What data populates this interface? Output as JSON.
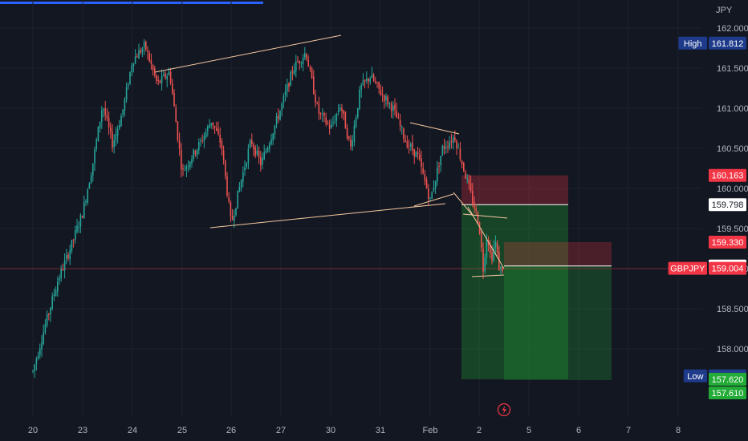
{
  "chart_data": {
    "type": "candlestick",
    "symbol": "GBPJPY",
    "currency": "JPY",
    "y_axis": {
      "range": [
        157.55,
        162.2
      ],
      "ticks": [
        "162.000",
        "161.500",
        "161.000",
        "160.500",
        "160.000",
        "159.500",
        "159.000",
        "158.500",
        "158.000"
      ]
    },
    "x_axis": {
      "ticks": [
        "20",
        "23",
        "24",
        "25",
        "26",
        "27",
        "30",
        "31",
        "Feb",
        "2",
        "5",
        "6",
        "7",
        "8"
      ]
    },
    "price_tags": [
      {
        "label": "High",
        "value": "161.812",
        "color": "#1e3a8a"
      },
      {
        "label": "",
        "value": "160.163",
        "color": "#f23645"
      },
      {
        "label": "",
        "value": "159.798",
        "color": "#ffffff"
      },
      {
        "label": "",
        "value": "159.330",
        "color": "#f23645"
      },
      {
        "label": "",
        "value": "159.033",
        "color": "#ffffff"
      },
      {
        "label": "GBPJPY",
        "value": "159.004",
        "color": "#f23645"
      },
      {
        "label": "Low",
        "value": "157.662",
        "color": "#1e3a8a"
      },
      {
        "label": "",
        "value": "157.620",
        "color": "#22ab36"
      },
      {
        "label": "",
        "value": "157.610",
        "color": "#22ab36"
      }
    ],
    "current_price": 159.004,
    "day_high": 161.812,
    "day_low": 157.662,
    "positions": [
      {
        "type": "short",
        "entry": 159.798,
        "stop": 160.163,
        "target": 157.62
      },
      {
        "type": "short",
        "entry": 159.033,
        "stop": 159.33,
        "target": 157.61
      }
    ],
    "price_path": [
      [
        "20",
        157.72
      ],
      [
        "20",
        158.3
      ],
      [
        "20",
        158.85
      ],
      [
        "20",
        159.25
      ],
      [
        "23",
        159.7
      ],
      [
        "23",
        160.3
      ],
      [
        "23",
        161.05
      ],
      [
        "23",
        160.55
      ],
      [
        "23",
        160.95
      ],
      [
        "24",
        161.6
      ],
      [
        "24",
        161.78
      ],
      [
        "24",
        161.3
      ],
      [
        "24",
        161.45
      ],
      [
        "25",
        160.2
      ],
      [
        "25",
        160.4
      ],
      [
        "25",
        160.6
      ],
      [
        "25",
        160.85
      ],
      [
        "25",
        160.55
      ],
      [
        "26",
        159.55
      ],
      [
        "26",
        160.1
      ],
      [
        "26",
        160.6
      ],
      [
        "26",
        160.3
      ],
      [
        "26",
        160.65
      ],
      [
        "27",
        161.0
      ],
      [
        "27",
        161.5
      ],
      [
        "27",
        161.7
      ],
      [
        "27",
        160.95
      ],
      [
        "30",
        160.75
      ],
      [
        "30",
        161.05
      ],
      [
        "30",
        160.5
      ],
      [
        "30",
        161.25
      ],
      [
        "30",
        161.4
      ],
      [
        "31",
        161.2
      ],
      [
        "31",
        161.0
      ],
      [
        "31",
        160.6
      ],
      [
        "31",
        160.4
      ],
      [
        "Feb",
        159.85
      ],
      [
        "Feb",
        160.5
      ],
      [
        "Feb",
        160.65
      ],
      [
        "Feb",
        160.1
      ],
      [
        "2",
        159.55
      ],
      [
        "2",
        159.0
      ],
      [
        "2",
        159.45
      ],
      [
        "2",
        159.1
      ],
      [
        "2",
        159.35
      ],
      [
        "2",
        159.0
      ]
    ]
  }
}
